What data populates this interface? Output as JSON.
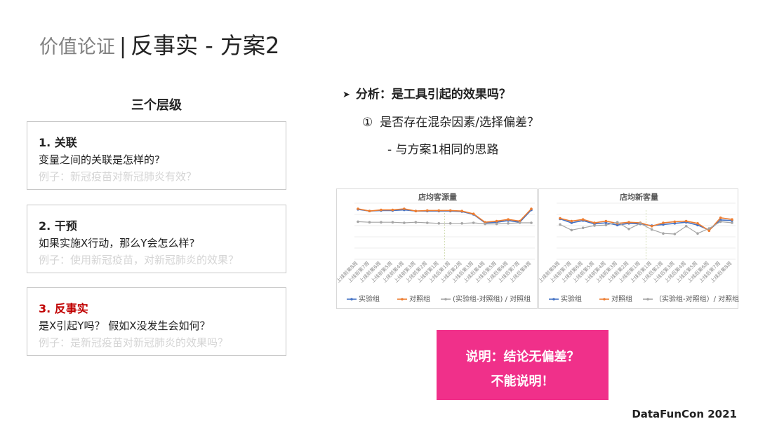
{
  "title": {
    "prefix": "价值论证",
    "separator": "|",
    "main": "反事实 - 方案2"
  },
  "levels": {
    "heading": "三个层级",
    "items": [
      {
        "heading": "1. 关联",
        "question": "变量之间的关联是怎样的?",
        "example": "例子：新冠疫苗对新冠肺炎有效？",
        "heading_color": "#222222"
      },
      {
        "heading": "2. 干预",
        "question": "如果实施X行动，那么Y会怎么样?",
        "example": "例子：使用新冠疫苗，对新冠肺炎的效果？",
        "heading_color": "#222222"
      },
      {
        "heading": "3. 反事实",
        "question": "是X引起Y吗？ 假如X没发生会如何？",
        "example": "例子：是新冠疫苗对新冠肺炎的效果吗？",
        "heading_color": "#c00000"
      }
    ]
  },
  "analysis": {
    "bullet_icon": "arrow-right-icon",
    "heading": "分析：是工具引起的效果吗？",
    "point1_marker": "①",
    "point1": "是否存在混杂因素/选择偏差？",
    "point2": "- 与方案1相同的思路"
  },
  "colors": {
    "experiment": "#4472c4",
    "control": "#ed7d31",
    "diff": "#a5a5a5",
    "callout": "#f0308a",
    "red": "#c00000"
  },
  "chart_data": [
    {
      "type": "line",
      "title": "店均客源量",
      "categories": [
        "上线前第8周",
        "上线前第7周",
        "上线前第6周",
        "上线前第5周",
        "上线前第4周",
        "上线前第3周",
        "上线前第2周",
        "上线前第1周",
        "上线后第1周",
        "上线后第2周",
        "上线后第3周",
        "上线后第4周",
        "上线后第5周",
        "上线后第6周",
        "上线后第7周",
        "上线后第8周"
      ],
      "ylim": [
        0,
        10
      ],
      "grid": true,
      "legend": "bottom",
      "series": [
        {
          "name": "实验组",
          "values": [
            8.9,
            8.6,
            8.7,
            8.7,
            8.8,
            8.6,
            8.6,
            8.6,
            8.6,
            8.5,
            8.0,
            6.5,
            6.6,
            6.9,
            6.6,
            8.8
          ]
        },
        {
          "name": "对照组",
          "values": [
            9.0,
            8.6,
            8.8,
            8.8,
            9.0,
            8.6,
            8.7,
            8.7,
            8.7,
            8.6,
            8.1,
            6.6,
            6.8,
            7.1,
            6.8,
            9.0
          ]
        },
        {
          "name": "(实验组-对照组) / 对照组",
          "values": [
            6.7,
            6.6,
            6.6,
            6.6,
            6.5,
            6.6,
            6.5,
            6.4,
            6.4,
            6.4,
            6.5,
            6.3,
            6.3,
            6.4,
            6.5,
            6.5
          ]
        }
      ]
    },
    {
      "type": "line",
      "title": "店均新客量",
      "categories": [
        "上线前第8周",
        "上线前第7周",
        "上线前第6周",
        "上线前第5周",
        "上线前第4周",
        "上线前第3周",
        "上线前第2周",
        "上线前第1周",
        "上线后第1周",
        "上线后第2周",
        "上线后第3周",
        "上线后第4周",
        "上线后第5周",
        "上线后第6周",
        "上线后第7周",
        "上线后第8周"
      ],
      "ylim": [
        0,
        10
      ],
      "grid": true,
      "legend": "bottom",
      "series": [
        {
          "name": "实验组",
          "values": [
            7.2,
            6.5,
            6.9,
            6.3,
            6.5,
            6.1,
            6.4,
            6.3,
            6.0,
            6.2,
            6.4,
            6.6,
            6.1,
            5.2,
            7.0,
            6.9
          ]
        },
        {
          "name": "对照组",
          "values": [
            7.3,
            6.8,
            7.1,
            6.5,
            6.8,
            6.4,
            6.6,
            6.5,
            5.9,
            6.5,
            6.7,
            6.8,
            6.4,
            5.1,
            7.4,
            7.1
          ]
        },
        {
          "name": "（实验组-对照组）/ 对照组",
          "values": [
            6.2,
            5.2,
            5.6,
            6.0,
            6.1,
            6.6,
            5.4,
            6.4,
            5.3,
            4.6,
            4.5,
            5.9,
            4.6,
            5.5,
            6.7,
            6.5
          ]
        }
      ]
    }
  ],
  "callout": {
    "line1": "说明：结论无偏差？",
    "line2": "不能说明！"
  },
  "brand": "DataFunCon 2021"
}
